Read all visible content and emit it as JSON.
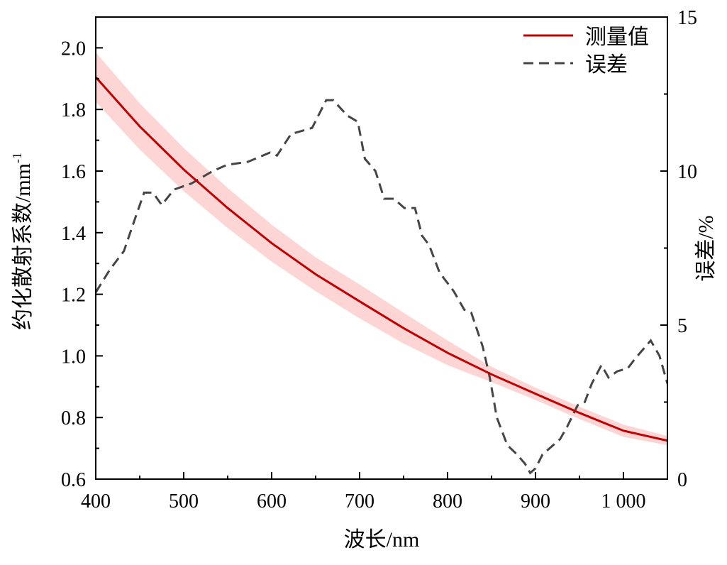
{
  "chart_data": {
    "type": "line",
    "xlabel": "波长/nm",
    "ylabel": "约化散射系数/mm",
    "ylabel_sup": "-1",
    "y2label": "误差/%",
    "xlim": [
      400,
      1050
    ],
    "ylim": [
      0.6,
      2.1
    ],
    "y2lim": [
      0,
      15
    ],
    "xticks": [
      400,
      500,
      600,
      700,
      800,
      900,
      1000
    ],
    "xtick_labels": [
      "400",
      "500",
      "600",
      "700",
      "800",
      "900",
      "1 000"
    ],
    "yticks": [
      0.6,
      0.8,
      1.0,
      1.2,
      1.4,
      1.6,
      1.8,
      2.0
    ],
    "ytick_labels": [
      "0.6",
      "0.8",
      "1.0",
      "1.2",
      "1.4",
      "1.6",
      "1.8",
      "2.0"
    ],
    "y2ticks": [
      0,
      5,
      10,
      15
    ],
    "y2tick_labels": [
      "0",
      "5",
      "10",
      "15"
    ],
    "legend": {
      "placement": "top-right",
      "entries": [
        "测量值",
        "误差"
      ]
    },
    "series": [
      {
        "name": "测量值",
        "axis": "left",
        "color": "#c00000",
        "style": "solid",
        "x": [
          400,
          450,
          500,
          550,
          600,
          650,
          700,
          750,
          800,
          850,
          900,
          950,
          1000,
          1050
        ],
        "y": [
          1.905,
          1.745,
          1.605,
          1.48,
          1.366,
          1.265,
          1.177,
          1.09,
          1.01,
          0.94,
          0.877,
          0.815,
          0.757,
          0.725
        ],
        "band": [
          0.08,
          0.075,
          0.07,
          0.065,
          0.06,
          0.055,
          0.055,
          0.05,
          0.04,
          0.025,
          0.02,
          0.02,
          0.02,
          0.015
        ],
        "band_color": "#fdd5d5"
      },
      {
        "name": "误差",
        "axis": "right",
        "color": "#454545",
        "style": "dashed",
        "x": [
          400,
          416,
          432,
          444,
          455,
          465,
          475,
          489,
          509,
          533,
          549,
          573,
          598,
          606,
          622,
          646,
          662,
          670,
          686,
          698,
          706,
          718,
          728,
          739,
          751,
          763,
          771,
          779,
          791,
          807,
          819,
          827,
          840,
          848,
          856,
          868,
          879,
          888,
          894,
          900,
          908,
          916,
          928,
          936,
          948,
          956,
          964,
          975,
          983,
          993,
          1005,
          1013,
          1031,
          1041,
          1050
        ],
        "y": [
          6.06,
          6.8,
          7.4,
          8.4,
          9.3,
          9.3,
          8.9,
          9.4,
          9.6,
          10.0,
          10.2,
          10.3,
          10.6,
          10.5,
          11.2,
          11.4,
          12.3,
          12.3,
          11.8,
          11.6,
          10.4,
          10.0,
          9.1,
          9.1,
          8.8,
          8.8,
          7.9,
          7.6,
          6.7,
          6.1,
          5.5,
          5.4,
          4.3,
          3.3,
          2.0,
          1.1,
          0.8,
          0.5,
          0.2,
          0.35,
          0.8,
          1.0,
          1.3,
          1.7,
          2.4,
          2.5,
          3.1,
          3.7,
          3.3,
          3.5,
          3.6,
          3.9,
          4.5,
          4.0,
          3.1
        ]
      }
    ]
  }
}
